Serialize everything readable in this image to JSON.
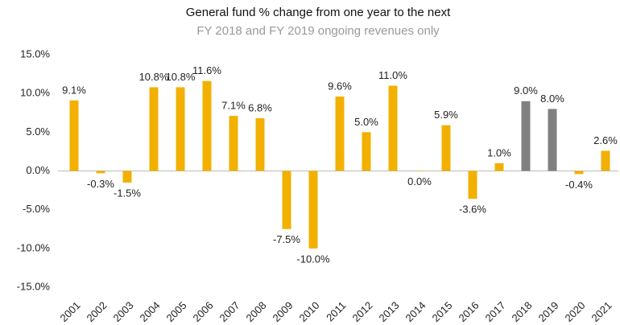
{
  "chart_data": {
    "type": "bar",
    "title": "General fund % change from one year to the next",
    "subtitle": "FY 2018 and FY 2019 ongoing revenues only",
    "categories": [
      "2001",
      "2002",
      "2003",
      "2004",
      "2005",
      "2006",
      "2007",
      "2008",
      "2009",
      "2010",
      "2011",
      "2012",
      "2013",
      "2014",
      "2015",
      "2016",
      "2017",
      "2018",
      "2019",
      "2020",
      "2021"
    ],
    "values": [
      9.1,
      -0.3,
      -1.5,
      10.8,
      10.8,
      11.6,
      7.1,
      6.8,
      -7.5,
      -10.0,
      9.6,
      5.0,
      11.0,
      0.0,
      5.9,
      -3.6,
      1.0,
      9.0,
      8.0,
      -0.4,
      2.6
    ],
    "value_labels": [
      "9.1%",
      "-0.3%",
      "-1.5%",
      "10.8%",
      "10.8%",
      "11.6%",
      "7.1%",
      "6.8%",
      "-7.5%",
      "-10.0%",
      "9.6%",
      "5.0%",
      "11.0%",
      "0.0%",
      "5.9%",
      "-3.6%",
      "1.0%",
      "9.0%",
      "8.0%",
      "-0.4%",
      "2.6%"
    ],
    "colors": [
      "#f2b000",
      "#f2b000",
      "#f2b000",
      "#f2b000",
      "#f2b000",
      "#f2b000",
      "#f2b000",
      "#f2b000",
      "#f2b000",
      "#f2b000",
      "#f2b000",
      "#f2b000",
      "#f2b000",
      "#f2b000",
      "#f2b000",
      "#f2b000",
      "#f2b000",
      "#808080",
      "#808080",
      "#f2b000",
      "#f2b000"
    ],
    "ylim": [
      -15,
      15
    ],
    "yticks": [
      {
        "value": 15,
        "label": "15.0%"
      },
      {
        "value": 10,
        "label": "10.0%"
      },
      {
        "value": 5,
        "label": "5.0%"
      },
      {
        "value": 0,
        "label": "0.0%"
      },
      {
        "value": -5,
        "label": "-5.0%"
      },
      {
        "value": -10,
        "label": "-10.0%"
      },
      {
        "value": -15,
        "label": "-15.0%"
      }
    ]
  }
}
